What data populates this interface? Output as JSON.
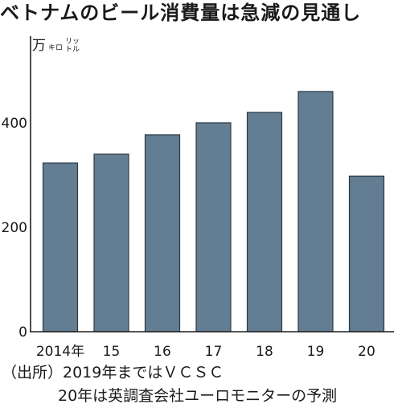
{
  "chart_data": {
    "type": "bar",
    "title": "ベトナムのビール消費量は急減の見通し",
    "yunit": {
      "main": "万",
      "small1": "キロ",
      "small2": "リットル"
    },
    "categories": [
      "2014年",
      "15",
      "16",
      "17",
      "18",
      "19",
      "20"
    ],
    "values": [
      323,
      340,
      377,
      400,
      420,
      460,
      298
    ],
    "yticks": [
      0,
      200,
      400
    ],
    "ylim": [
      0,
      566
    ],
    "grid": false,
    "legend": "none",
    "bar_color": "#637d92"
  },
  "source": {
    "line1": "（出所）2019年まではＶＣＳＣ",
    "line2": "20年は英調査会社ユーロモニターの予測"
  }
}
